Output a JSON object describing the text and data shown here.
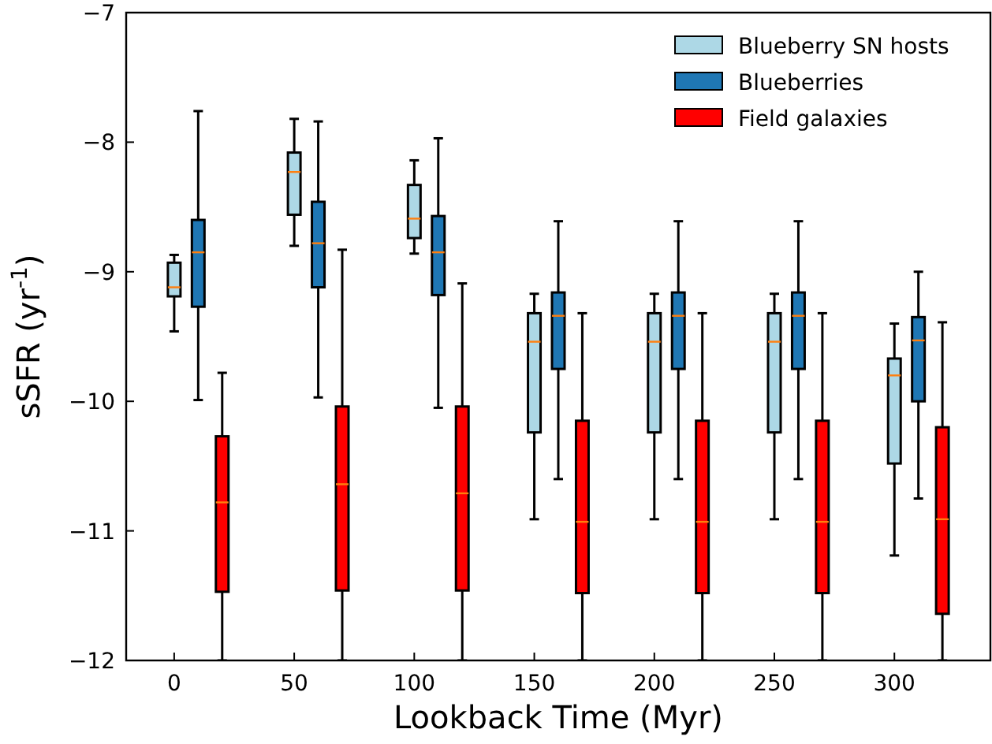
{
  "chart_data": {
    "type": "box",
    "xlabel": "Lookback Time (Myr)",
    "ylabel": "sSFR (yr$^{-1}$)",
    "xlim": [
      -20,
      340
    ],
    "xticks": [
      0,
      50,
      100,
      150,
      200,
      250,
      300
    ],
    "ylim": [
      -12,
      -7
    ],
    "yticks": [
      -12,
      -11,
      -10,
      -9,
      -8,
      -7
    ],
    "legend": "top right",
    "grid": false,
    "series": [
      {
        "name": "Blueberry SN hosts",
        "color": "#add8e6",
        "x": [
          0,
          50,
          100,
          150,
          200,
          250,
          300
        ],
        "boxes": [
          {
            "low": -9.46,
            "q1": -9.19,
            "median": -9.12,
            "q3": -8.93,
            "high": -8.87
          },
          {
            "low": -8.8,
            "q1": -8.56,
            "median": -8.23,
            "q3": -8.08,
            "high": -7.82
          },
          {
            "low": -8.86,
            "q1": -8.74,
            "median": -8.59,
            "q3": -8.33,
            "high": -8.14
          },
          {
            "low": -10.91,
            "q1": -10.24,
            "median": -9.54,
            "q3": -9.32,
            "high": -9.17
          },
          {
            "low": -10.91,
            "q1": -10.24,
            "median": -9.54,
            "q3": -9.32,
            "high": -9.17
          },
          {
            "low": -10.91,
            "q1": -10.24,
            "median": -9.54,
            "q3": -9.32,
            "high": -9.17
          },
          {
            "low": -11.19,
            "q1": -10.48,
            "median": -9.8,
            "q3": -9.67,
            "high": -9.4
          }
        ]
      },
      {
        "name": "Blueberries",
        "color": "#1f77b4",
        "x": [
          10,
          60,
          110,
          160,
          210,
          260,
          310
        ],
        "boxes": [
          {
            "low": -9.99,
            "q1": -9.27,
            "median": -8.85,
            "q3": -8.6,
            "high": -7.76
          },
          {
            "low": -9.97,
            "q1": -9.12,
            "median": -8.78,
            "q3": -8.46,
            "high": -7.84
          },
          {
            "low": -10.05,
            "q1": -9.18,
            "median": -8.85,
            "q3": -8.57,
            "high": -7.97
          },
          {
            "low": -10.6,
            "q1": -9.75,
            "median": -9.34,
            "q3": -9.16,
            "high": -8.61
          },
          {
            "low": -10.6,
            "q1": -9.75,
            "median": -9.34,
            "q3": -9.16,
            "high": -8.61
          },
          {
            "low": -10.6,
            "q1": -9.75,
            "median": -9.34,
            "q3": -9.16,
            "high": -8.61
          },
          {
            "low": -10.75,
            "q1": -10.0,
            "median": -9.53,
            "q3": -9.35,
            "high": -9.0
          }
        ]
      },
      {
        "name": "Field galaxies",
        "color": "#ff0000",
        "x": [
          20,
          70,
          120,
          170,
          220,
          270,
          320
        ],
        "boxes": [
          {
            "low": -12,
            "q1": -11.47,
            "median": -10.78,
            "q3": -10.27,
            "high": -9.78
          },
          {
            "low": -12,
            "q1": -11.46,
            "median": -10.64,
            "q3": -10.04,
            "high": -8.83
          },
          {
            "low": -12,
            "q1": -11.46,
            "median": -10.71,
            "q3": -10.04,
            "high": -9.09
          },
          {
            "low": -12,
            "q1": -11.48,
            "median": -10.93,
            "q3": -10.15,
            "high": -9.32
          },
          {
            "low": -12,
            "q1": -11.48,
            "median": -10.93,
            "q3": -10.15,
            "high": -9.32
          },
          {
            "low": -12,
            "q1": -11.48,
            "median": -10.93,
            "q3": -10.15,
            "high": -9.32
          },
          {
            "low": -12,
            "q1": -11.64,
            "median": -10.91,
            "q3": -10.2,
            "high": -9.39
          }
        ]
      }
    ]
  }
}
